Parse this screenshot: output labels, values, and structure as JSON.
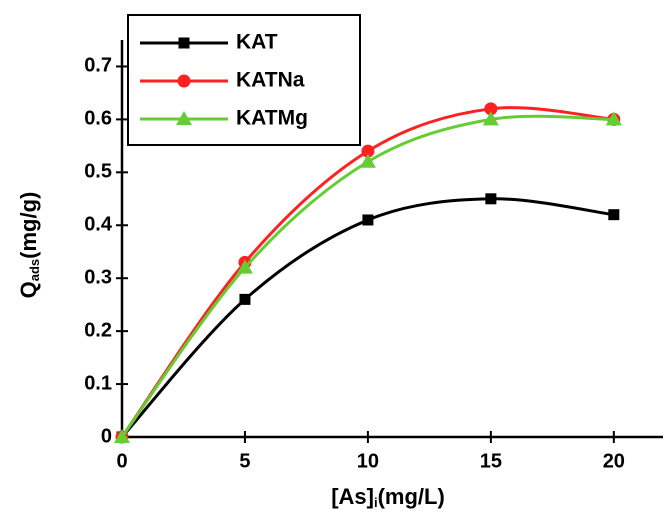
{
  "chart_data": {
    "type": "line",
    "x_label": {
      "main": "[As]",
      "sub": "i",
      "unit": "(mg/L)"
    },
    "y_label": {
      "main": "Q",
      "sub": "ads",
      "unit": "(mg/g)"
    },
    "x": [
      0,
      5,
      10,
      15,
      20
    ],
    "series": [
      {
        "name": "KAT",
        "color": "#000000",
        "marker": "square",
        "values": [
          0,
          0.26,
          0.41,
          0.45,
          0.42
        ]
      },
      {
        "name": "KATNa",
        "color": "#ff2020",
        "marker": "circle",
        "values": [
          0,
          0.33,
          0.54,
          0.62,
          0.6
        ]
      },
      {
        "name": "KATMg",
        "color": "#66cc33",
        "marker": "triangle",
        "values": [
          0,
          0.32,
          0.52,
          0.6,
          0.6
        ]
      }
    ],
    "xlim": [
      0,
      22
    ],
    "xticks": [
      0,
      5,
      10,
      15,
      20
    ],
    "ylim": [
      0,
      0.75
    ],
    "yticks": [
      0,
      0.1,
      0.2,
      0.3,
      0.4,
      0.5,
      0.6,
      0.7
    ],
    "legend": "upper-left",
    "grid": false
  }
}
